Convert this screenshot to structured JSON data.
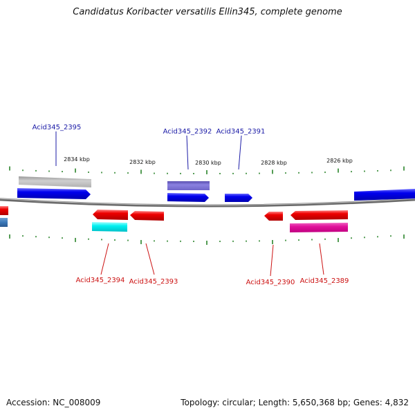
{
  "title": "Candidatus Koribacter versatilis Ellin345, complete genome",
  "footer": {
    "accession_label": "Accession:",
    "accession": "NC_008009",
    "topology_label": "Topology:",
    "topology": "circular;",
    "length_label": "Length:",
    "length": "5,650,368 bp;",
    "genes_label": "Genes:",
    "genes": "4,832"
  },
  "colors": {
    "forward_label": "#1a1aa6",
    "reverse_label": "#cc1111",
    "tick": "#1a7a1a",
    "backbone": "#808080"
  },
  "scale_labels": [
    "2834 kbp",
    "2832 kbp",
    "2830 kbp",
    "2828 kbp",
    "2826 kbp"
  ],
  "forward_labels": [
    "Acid345_2395",
    "Acid345_2392",
    "Acid345_2391"
  ],
  "reverse_labels": [
    "Acid345_2394",
    "Acid345_2393",
    "Acid345_2390",
    "Acid345_2389"
  ]
}
